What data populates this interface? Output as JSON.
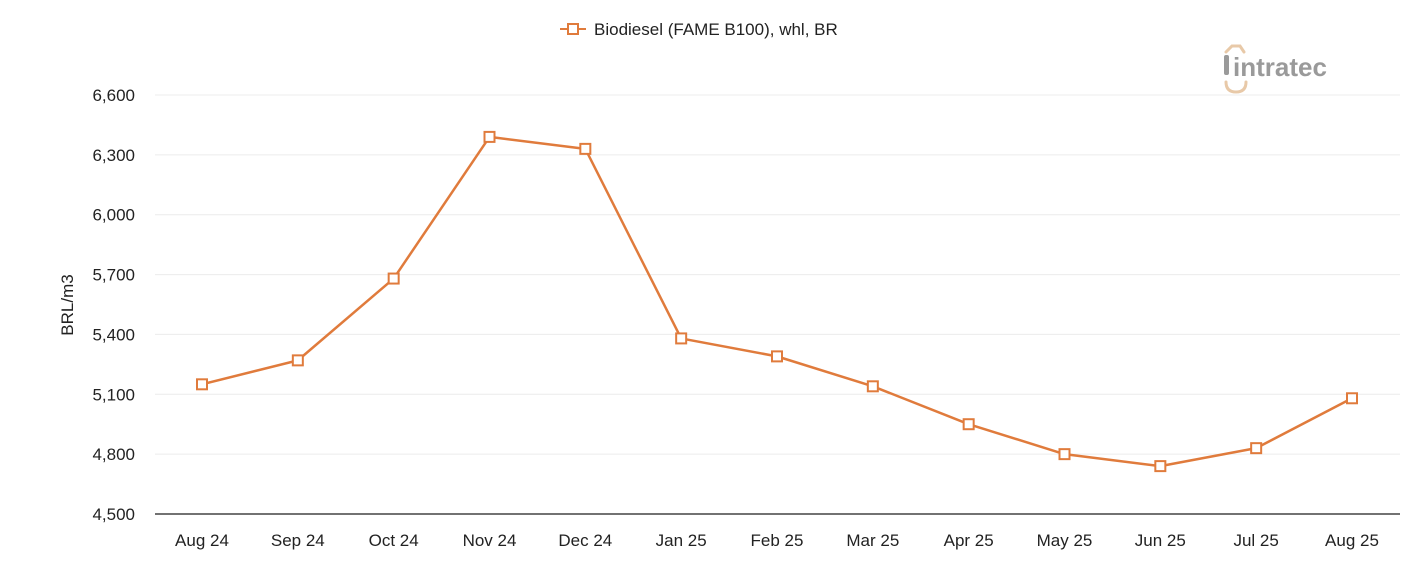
{
  "chart_data": {
    "type": "line",
    "title": "",
    "xlabel": "",
    "ylabel": "BRL/m3",
    "categories": [
      "Aug 24",
      "Sep 24",
      "Oct 24",
      "Nov 24",
      "Dec 24",
      "Jan 25",
      "Feb 25",
      "Mar 25",
      "Apr 25",
      "May 25",
      "Jun 25",
      "Jul 25",
      "Aug 25"
    ],
    "series": [
      {
        "name": "Biodiesel (FAME B100), whl, BR",
        "color": "#e07b3c",
        "marker": "square-open",
        "values": [
          5150,
          5270,
          5680,
          6390,
          6330,
          5380,
          5290,
          5140,
          4950,
          4800,
          4740,
          4830,
          5080
        ]
      }
    ],
    "ylim": [
      4500,
      6600
    ],
    "yticks": [
      4500,
      4800,
      5100,
      5400,
      5700,
      6000,
      6300,
      6600
    ],
    "ytick_labels": [
      "4,500",
      "4,800",
      "5,100",
      "5,400",
      "5,700",
      "6,000",
      "6,300",
      "6,600"
    ],
    "grid": true,
    "legend_position": "top-center"
  },
  "logo": {
    "text": "intratec",
    "icon": "intratec-logo-icon"
  },
  "colors": {
    "series": "#e07b3c",
    "grid": "#ececec",
    "axis": "#444444",
    "logo_gray": "#9a9a9a",
    "logo_accent": "#e8c9a8"
  }
}
